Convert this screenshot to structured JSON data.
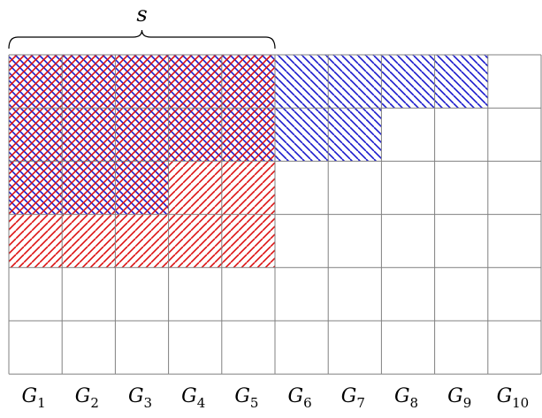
{
  "brace_label": "s",
  "grid": {
    "rows": 6,
    "cols": 10,
    "line_color": "#808080"
  },
  "columns": [
    {
      "base": "G",
      "sub": "1"
    },
    {
      "base": "G",
      "sub": "2"
    },
    {
      "base": "G",
      "sub": "3"
    },
    {
      "base": "G",
      "sub": "4"
    },
    {
      "base": "G",
      "sub": "5"
    },
    {
      "base": "G",
      "sub": "6"
    },
    {
      "base": "G",
      "sub": "7"
    },
    {
      "base": "G",
      "sub": "8"
    },
    {
      "base": "G",
      "sub": "9"
    },
    {
      "base": "G",
      "sub": "10"
    }
  ],
  "brace_span_columns": 5,
  "blue_hatch": {
    "color": "#1a1acc",
    "direction": "backslash",
    "filled_rows_per_column": [
      3,
      3,
      3,
      2,
      2,
      2,
      2,
      1,
      1,
      0
    ]
  },
  "red_hatch": {
    "color": "#dd1111",
    "direction": "slash",
    "filled_rows_per_column": [
      4,
      4,
      4,
      4,
      4,
      0,
      0,
      0,
      0,
      0
    ]
  }
}
